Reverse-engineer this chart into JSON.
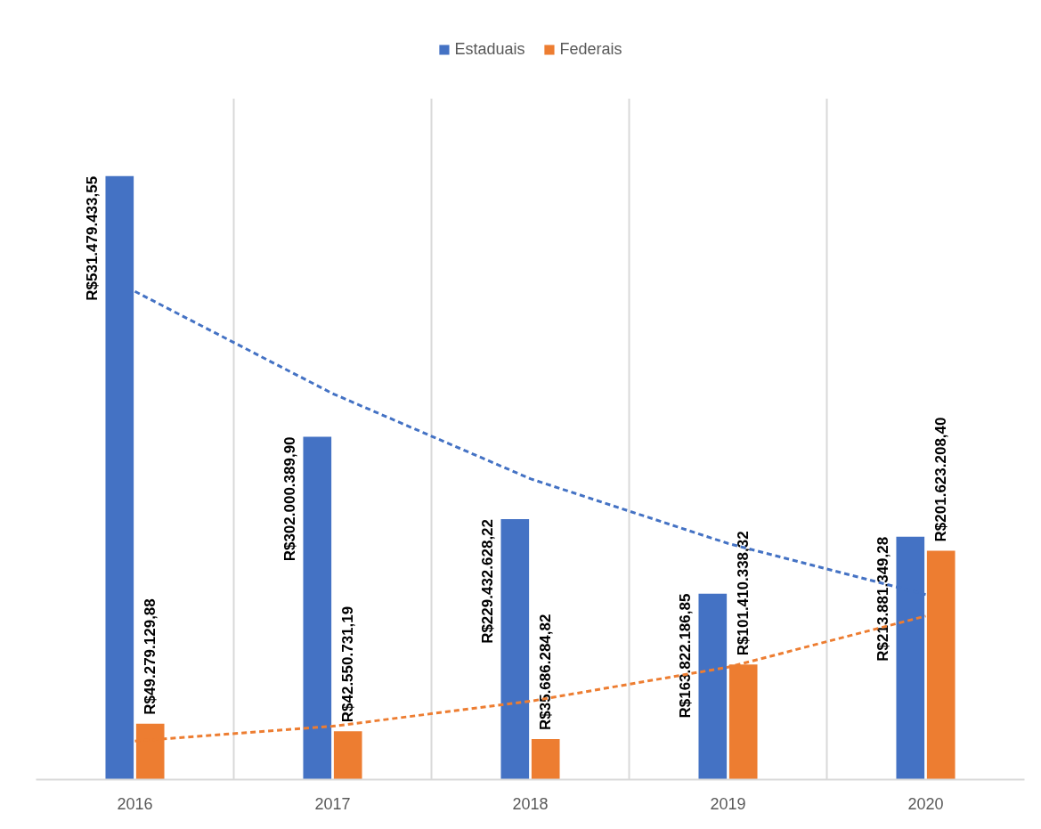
{
  "chart_data": {
    "type": "bar",
    "categories": [
      "2016",
      "2017",
      "2018",
      "2019",
      "2020"
    ],
    "series": [
      {
        "name": "Estaduais",
        "color": "#4472c4",
        "values": [
          531479433.55,
          302000389.9,
          229432628.22,
          163822186.85,
          213881349.28
        ],
        "value_labels": [
          "R$531.479.433,55",
          "R$302.000.389,90",
          "R$229.432.628,22",
          "R$163.822.186,85",
          "R$213.881.349,28"
        ]
      },
      {
        "name": "Federais",
        "color": "#ed7d31",
        "values": [
          49279129.88,
          42550731.19,
          35686284.82,
          101410338.32,
          201623208.4
        ],
        "value_labels": [
          "R$49.279.129,88",
          "R$42.550.731,19",
          "R$35.686.284,82",
          "R$101.410.338,32",
          "R$201.623.208,40"
        ]
      },
      {
        "type": "line",
        "color": "#4472c4",
        "line_style": "dashed",
        "values": [
          430000000,
          340000000,
          265000000,
          208000000,
          163000000
        ]
      },
      {
        "type": "line",
        "color": "#ed7d31",
        "line_style": "dashed",
        "values": [
          34000000,
          47000000,
          69000000,
          99000000,
          144000000
        ]
      }
    ],
    "ylim": [
      0,
      600000000
    ],
    "tick_labels": "x",
    "grid": "x",
    "legend": "top"
  }
}
